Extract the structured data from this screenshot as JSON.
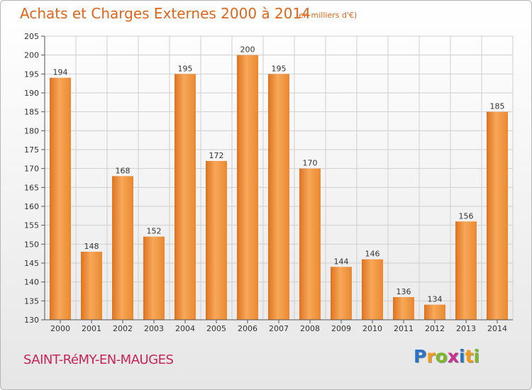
{
  "header": {
    "title": "Achats et Charges Externes 2000 à 2014",
    "subtitle": "(en milliers d'€)"
  },
  "footer": {
    "commune": "SAINT-RéMY-EN-MAUGES",
    "logo_parts": [
      "P",
      "r",
      "o",
      "x",
      "i",
      "t",
      "i"
    ],
    "logo_colors": [
      "#2a73c6",
      "#f09a18",
      "#7db829",
      "#cc2e8e",
      "#2a73c6",
      "#f09a18",
      "#7db829"
    ]
  },
  "colors": {
    "bar_light": "#f7a85a",
    "bar_dark": "#dd7320",
    "grid": "#cfcfcf",
    "axis": "#555555",
    "label": "#333333"
  },
  "chart_data": {
    "type": "bar",
    "categories": [
      "2000",
      "2001",
      "2002",
      "2003",
      "2004",
      "2005",
      "2006",
      "2007",
      "2008",
      "2009",
      "2010",
      "2011",
      "2012",
      "2013",
      "2014"
    ],
    "values": [
      194,
      148,
      168,
      152,
      195,
      172,
      200,
      195,
      170,
      144,
      146,
      136,
      134,
      156,
      185
    ],
    "ylim": [
      130,
      205
    ],
    "yticks": [
      130,
      135,
      140,
      145,
      150,
      155,
      160,
      165,
      170,
      175,
      180,
      185,
      190,
      195,
      200,
      205
    ],
    "grid": true,
    "data_labels": true
  }
}
